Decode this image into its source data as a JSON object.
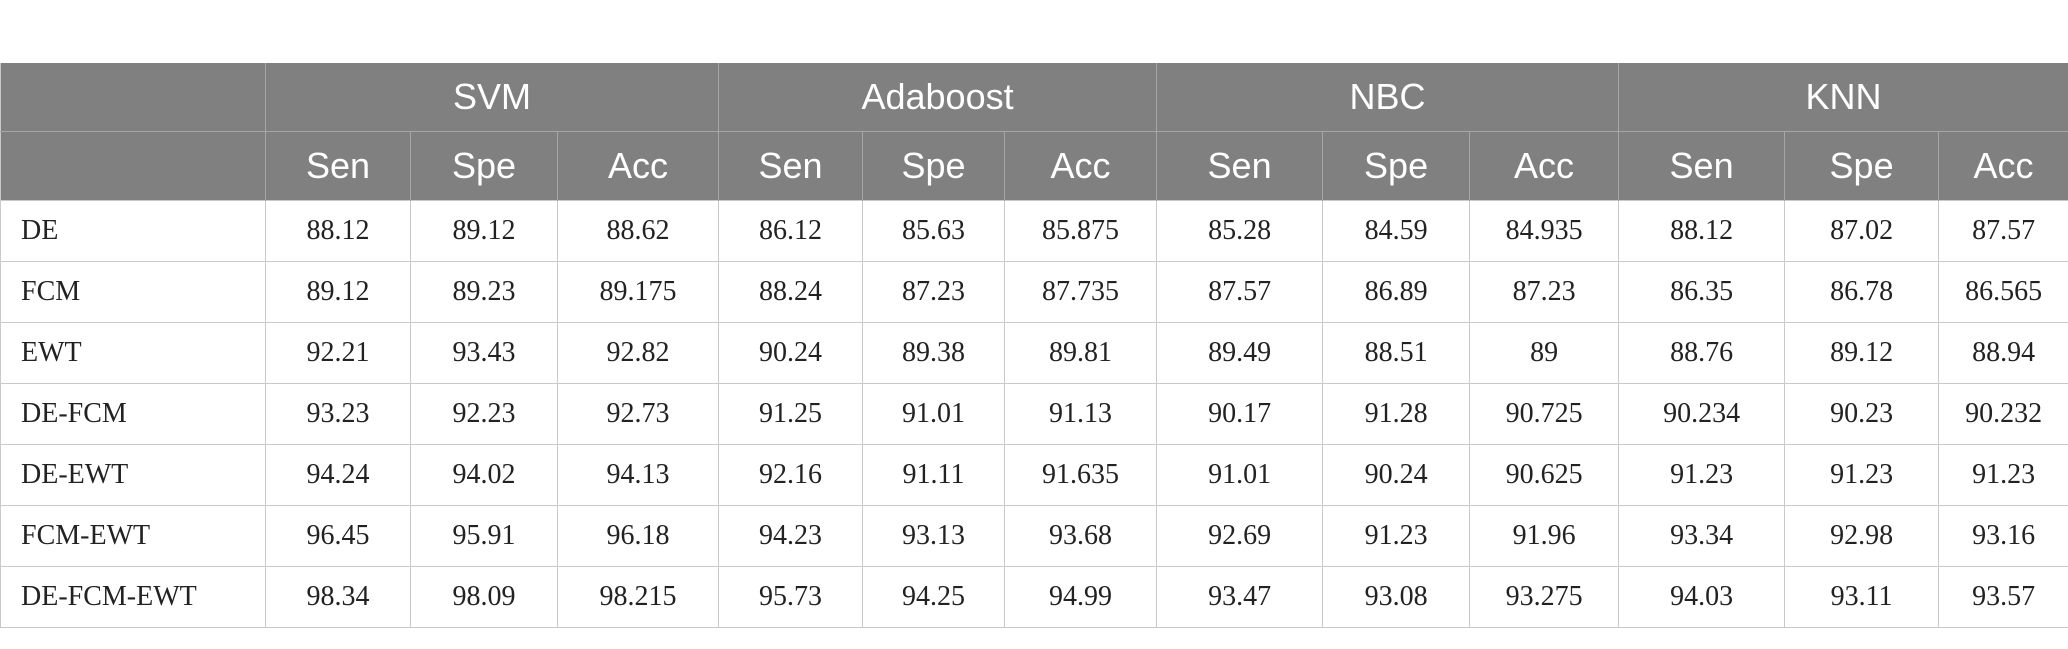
{
  "table": {
    "corner": "",
    "groups": [
      "SVM",
      "Adaboost",
      "NBC",
      "KNN"
    ],
    "metrics": [
      "Sen",
      "Spe",
      "Acc"
    ],
    "rows": [
      {
        "label": "DE",
        "values": [
          "88.12",
          "89.12",
          "88.62",
          "86.12",
          "85.63",
          "85.875",
          "85.28",
          "84.59",
          "84.935",
          "88.12",
          "87.02",
          "87.57"
        ]
      },
      {
        "label": "FCM",
        "values": [
          "89.12",
          "89.23",
          "89.175",
          "88.24",
          "87.23",
          "87.735",
          "87.57",
          "86.89",
          "87.23",
          "86.35",
          "86.78",
          "86.565"
        ]
      },
      {
        "label": "EWT",
        "values": [
          "92.21",
          "93.43",
          "92.82",
          "90.24",
          "89.38",
          "89.81",
          "89.49",
          "88.51",
          "89",
          "88.76",
          "89.12",
          "88.94"
        ]
      },
      {
        "label": "DE-FCM",
        "values": [
          "93.23",
          "92.23",
          "92.73",
          "91.25",
          "91.01",
          "91.13",
          "90.17",
          "91.28",
          "90.725",
          "90.234",
          "90.23",
          "90.232"
        ]
      },
      {
        "label": "DE-EWT",
        "values": [
          "94.24",
          "94.02",
          "94.13",
          "92.16",
          "91.11",
          "91.635",
          "91.01",
          "90.24",
          "90.625",
          "91.23",
          "91.23",
          "91.23"
        ]
      },
      {
        "label": "FCM-EWT",
        "values": [
          "96.45",
          "95.91",
          "96.18",
          "94.23",
          "93.13",
          "93.68",
          "92.69",
          "91.23",
          "91.96",
          "93.34",
          "92.98",
          "93.16"
        ]
      },
      {
        "label": "DE-FCM-EWT",
        "values": [
          "98.34",
          "98.09",
          "98.215",
          "95.73",
          "94.25",
          "94.99",
          "93.47",
          "93.08",
          "93.275",
          "94.03",
          "93.11",
          "93.57"
        ]
      }
    ]
  }
}
